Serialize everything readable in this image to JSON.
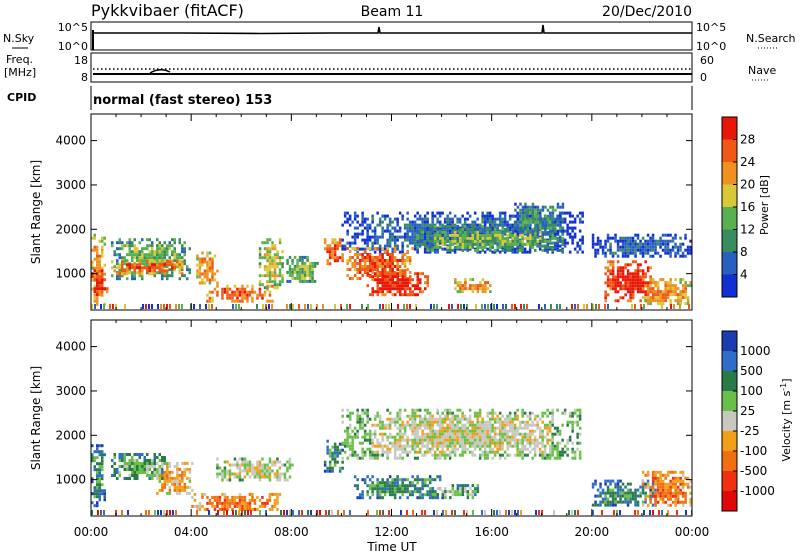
{
  "header": {
    "station": "Pykkvibaer (fitACF)",
    "beam": "Beam 11",
    "date": "20/Dec/2010"
  },
  "noise_panel": {
    "left_label": "N.Sky",
    "right_label": "N.Search",
    "left_ticks": [
      "10^5",
      "10^0"
    ],
    "right_ticks": [
      "10^5",
      "10^0"
    ]
  },
  "freq_panel": {
    "left_label_1": "Freq.",
    "left_label_2": "[MHz]",
    "left_ticks": [
      "18",
      "8"
    ],
    "right_label": "Nave",
    "right_ticks": [
      "60",
      "0"
    ]
  },
  "cpid_panel": {
    "label": "CPID",
    "text": "normal (fast stereo) 153"
  },
  "colors": {
    "power": [
      "#1030d0",
      "#2860c0",
      "#3a8c60",
      "#58b050",
      "#d8c838",
      "#f09020",
      "#f05818",
      "#e81808"
    ],
    "velocity": [
      "#1a3cb0",
      "#2e6ec8",
      "#2a7a48",
      "#68c048",
      "#c8c8c0",
      "#f0a018",
      "#f07010",
      "#f03010",
      "#e00808"
    ],
    "ground_scatter": "#c0c0b8"
  },
  "chart_data": [
    {
      "type": "heatmap",
      "name": "power",
      "xlabel": "",
      "ylabel": "Slant Range [km]",
      "x_range_hours": [
        0,
        24
      ],
      "ylim": [
        180,
        4600
      ],
      "y_ticks": [
        1000,
        2000,
        3000,
        4000
      ],
      "colorbar": {
        "label": "Power [dB]",
        "ticks": [
          "4",
          "8",
          "12",
          "16",
          "20",
          "24",
          "28"
        ],
        "range": [
          0,
          32
        ]
      },
      "regions": [
        {
          "t": [
            0.0,
            0.5
          ],
          "r": [
            300,
            1900
          ],
          "level": 5
        },
        {
          "t": [
            0.0,
            0.6
          ],
          "r": [
            500,
            1100
          ],
          "level": 7
        },
        {
          "t": [
            0.8,
            3.9
          ],
          "r": [
            900,
            1800
          ],
          "level": 3
        },
        {
          "t": [
            0.8,
            3.6
          ],
          "r": [
            1000,
            1300
          ],
          "level": 6
        },
        {
          "t": [
            4.2,
            5.0
          ],
          "r": [
            800,
            1500
          ],
          "level": 5
        },
        {
          "t": [
            4.6,
            7.2
          ],
          "r": [
            400,
            750
          ],
          "level": 6
        },
        {
          "t": [
            6.7,
            7.6
          ],
          "r": [
            700,
            1800
          ],
          "level": 4
        },
        {
          "t": [
            7.8,
            9.0
          ],
          "r": [
            800,
            1400
          ],
          "level": 3
        },
        {
          "t": [
            9.3,
            10.0
          ],
          "r": [
            1200,
            1800
          ],
          "level": 6
        },
        {
          "t": [
            10.0,
            19.6
          ],
          "r": [
            1500,
            2400
          ],
          "level": 1
        },
        {
          "t": [
            10.2,
            12.8
          ],
          "r": [
            900,
            1600
          ],
          "level": 6
        },
        {
          "t": [
            11.0,
            13.4
          ],
          "r": [
            500,
            1100
          ],
          "level": 7
        },
        {
          "t": [
            13.0,
            18.8
          ],
          "r": [
            1500,
            2100
          ],
          "level": 3
        },
        {
          "t": [
            14.5,
            16.0
          ],
          "r": [
            600,
            900
          ],
          "level": 5
        },
        {
          "t": [
            16.8,
            18.8
          ],
          "r": [
            1900,
            2600
          ],
          "level": 2
        },
        {
          "t": [
            20.0,
            24.0
          ],
          "r": [
            1400,
            1900
          ],
          "level": 1
        },
        {
          "t": [
            20.5,
            22.5
          ],
          "r": [
            400,
            1300
          ],
          "level": 7
        },
        {
          "t": [
            22.0,
            24.0
          ],
          "r": [
            300,
            900
          ],
          "level": 5
        }
      ]
    },
    {
      "type": "heatmap",
      "name": "velocity",
      "xlabel": "Time UT",
      "ylabel": "Slant Range [km]",
      "x_range_hours": [
        0,
        24
      ],
      "x_ticks": [
        "00:00",
        "04:00",
        "08:00",
        "12:00",
        "16:00",
        "20:00",
        "00:00"
      ],
      "ylim": [
        180,
        4600
      ],
      "y_ticks": [
        1000,
        2000,
        3000,
        4000
      ],
      "colorbar": {
        "label": "Velocity [m s^-1]",
        "ticks": [
          "1000",
          "500",
          "100",
          "25",
          "-25",
          "-100",
          "-500",
          "-1000"
        ],
        "range": [
          -1200,
          1200
        ]
      },
      "regions": [
        {
          "t": [
            0.0,
            0.5
          ],
          "r": [
            400,
            1800
          ],
          "level": 2
        },
        {
          "t": [
            0.8,
            3.0
          ],
          "r": [
            1000,
            1600
          ],
          "level": 3
        },
        {
          "t": [
            2.6,
            4.0
          ],
          "r": [
            700,
            1400
          ],
          "level": 5
        },
        {
          "t": [
            4.0,
            7.5
          ],
          "r": [
            300,
            700
          ],
          "level": 6
        },
        {
          "t": [
            5.0,
            8.0
          ],
          "r": [
            1000,
            1500
          ],
          "level": 4
        },
        {
          "t": [
            9.3,
            10.0
          ],
          "r": [
            1200,
            1900
          ],
          "level": 2
        },
        {
          "t": [
            10.0,
            19.5
          ],
          "r": [
            1500,
            2600
          ],
          "level": 4
        },
        {
          "t": [
            10.5,
            14.0
          ],
          "r": [
            600,
            1100
          ],
          "level": 2
        },
        {
          "t": [
            13.5,
            15.5
          ],
          "r": [
            600,
            900
          ],
          "level": 3
        },
        {
          "t": [
            20.0,
            22.5
          ],
          "r": [
            400,
            1000
          ],
          "level": 2
        },
        {
          "t": [
            22.0,
            24.0
          ],
          "r": [
            400,
            1200
          ],
          "level": 6
        }
      ]
    }
  ]
}
